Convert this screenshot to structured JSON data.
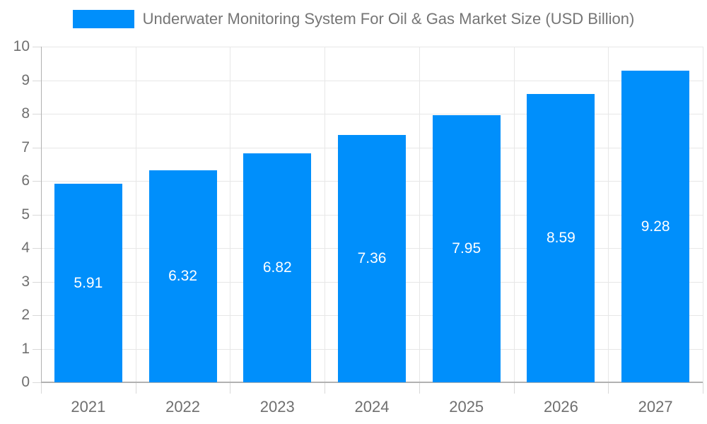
{
  "chart_data": {
    "type": "bar",
    "title": "Underwater Monitoring System For Oil & Gas Market Size (USD Billion)",
    "categories": [
      "2021",
      "2022",
      "2023",
      "2024",
      "2025",
      "2026",
      "2027"
    ],
    "values": [
      5.91,
      6.32,
      6.82,
      7.36,
      7.95,
      8.59,
      9.28
    ],
    "value_labels": [
      "5.91",
      "6.32",
      "6.82",
      "7.36",
      "7.95",
      "8.59",
      "9.28"
    ],
    "xlabel": "",
    "ylabel": "",
    "ylim": [
      0,
      10
    ],
    "ytick_step": 1,
    "ytick_labels": [
      "0",
      "1",
      "2",
      "3",
      "4",
      "5",
      "6",
      "7",
      "8",
      "9",
      "10"
    ],
    "grid": true,
    "legend_position": "top",
    "colors": {
      "bar": "#008FFB",
      "bar_value_label": "#ffffff",
      "axis_text": "#6f6f6f",
      "title_text": "#757575",
      "grid_line": "#e7e7e7",
      "axis_line": "#b1b1b1",
      "tick": "#d9d9d9",
      "background": "#ffffff"
    }
  }
}
